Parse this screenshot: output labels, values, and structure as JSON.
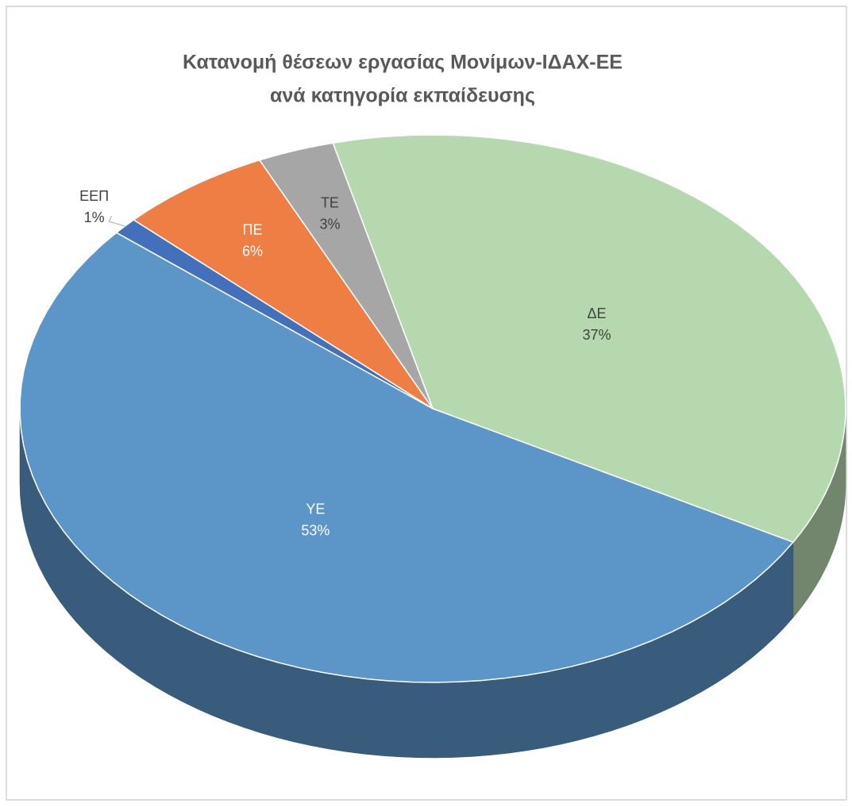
{
  "chart_data": {
    "type": "pie3d",
    "title": [
      "Κατανομή θέσεων εργασίας Μονίμων-ΙΔΑΧ-ΕΕ",
      "ανά κατηγορία εκπαίδευσης"
    ],
    "categories": [
      "ΔΕ",
      "ΥΕ",
      "ΕΕΠ",
      "ΠΕ",
      "ΤΕ"
    ],
    "values": [
      37,
      53,
      1,
      6,
      3
    ],
    "value_labels": [
      "37%",
      "53%",
      "1%",
      "6%",
      "3%"
    ],
    "colors": [
      "#b6d8ae",
      "#5c95c8",
      "#4270bb",
      "#ee7e44",
      "#a6a6a6"
    ]
  }
}
